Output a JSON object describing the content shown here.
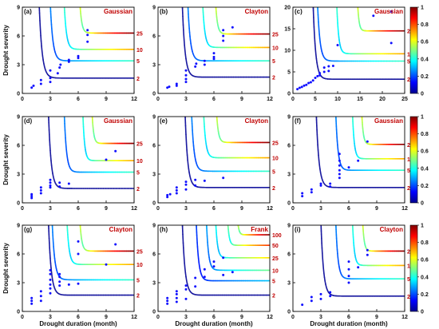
{
  "figure": {
    "xlabel": "Drought duration (month)",
    "ylabel": "Drought severity"
  },
  "colorbar": {
    "ticks": [
      "0",
      "0.2",
      "0.4",
      "0.6",
      "0.8",
      "1"
    ]
  },
  "chart_data": [
    {
      "panel": "(a)",
      "copula": "Gaussian",
      "type": "scatter",
      "xlim": [
        0,
        12
      ],
      "ylim": [
        0,
        9
      ],
      "xticks": [
        "0",
        "3",
        "6",
        "9",
        "12"
      ],
      "yticks": [
        "0",
        "3",
        "6",
        "9"
      ],
      "return_periods": [
        "2",
        "5",
        "10",
        "25"
      ],
      "contours": [
        {
          "label": "2",
          "xa": 1.8,
          "ya": 1.6
        },
        {
          "label": "5",
          "xa": 3.0,
          "ya": 3.4
        },
        {
          "label": "10",
          "xa": 4.5,
          "ya": 4.6
        },
        {
          "label": "25",
          "xa": 6.2,
          "ya": 6.3
        }
      ],
      "points": [
        [
          1,
          0.6
        ],
        [
          1.2,
          0.8
        ],
        [
          2,
          1
        ],
        [
          2,
          1.4
        ],
        [
          3,
          1.2
        ],
        [
          3,
          1.6
        ],
        [
          3,
          2.4
        ],
        [
          3.8,
          2.1
        ],
        [
          4,
          2.7
        ],
        [
          4.1,
          3
        ],
        [
          5,
          3.3
        ],
        [
          5,
          3.5
        ],
        [
          6,
          3.7
        ],
        [
          6,
          3.9
        ],
        [
          7,
          5.4
        ],
        [
          7,
          6.1
        ],
        [
          7,
          6.6
        ]
      ]
    },
    {
      "panel": "(b)",
      "copula": "Clayton",
      "type": "scatter",
      "xlim": [
        0,
        12
      ],
      "ylim": [
        0,
        9
      ],
      "xticks": [
        "0",
        "3",
        "6",
        "9",
        "12"
      ],
      "yticks": [
        "0",
        "3",
        "6",
        "9"
      ],
      "return_periods": [
        "2",
        "5",
        "10",
        "25"
      ],
      "contours": [
        {
          "label": "2",
          "xa": 2.6,
          "ya": 1.7
        },
        {
          "label": "5",
          "xa": 3.2,
          "ya": 3.4
        },
        {
          "label": "10",
          "xa": 4.8,
          "ya": 4.8
        },
        {
          "label": "25",
          "xa": 6.2,
          "ya": 6.2
        }
      ],
      "points": [
        [
          1,
          0.6
        ],
        [
          1.2,
          0.7
        ],
        [
          2,
          0.8
        ],
        [
          2,
          1
        ],
        [
          3,
          1.2
        ],
        [
          3,
          1.5
        ],
        [
          3,
          1.9
        ],
        [
          3,
          2.4
        ],
        [
          4,
          2.8
        ],
        [
          4.1,
          3.1
        ],
        [
          5,
          3
        ],
        [
          5,
          3.4
        ],
        [
          6,
          3.6
        ],
        [
          6,
          3.8
        ],
        [
          6,
          4.2
        ],
        [
          7,
          5.5
        ],
        [
          7,
          6
        ],
        [
          7,
          6.6
        ],
        [
          8,
          6.9
        ]
      ]
    },
    {
      "panel": "(c)",
      "copula": "Gaussian",
      "type": "scatter",
      "xlim": [
        0,
        25
      ],
      "ylim": [
        0,
        20
      ],
      "xticks": [
        "0",
        "5",
        "10",
        "15",
        "20",
        "25"
      ],
      "yticks": [
        "0",
        "5",
        "10",
        "15",
        "20"
      ],
      "return_periods": [
        "2",
        "5",
        "10",
        "25"
      ],
      "contours": [
        {
          "label": "2",
          "xa": 4.5,
          "ya": 3.3
        },
        {
          "label": "5",
          "xa": 5.5,
          "ya": 7.5
        },
        {
          "label": "10",
          "xa": 9.8,
          "ya": 9.2
        },
        {
          "label": "25",
          "xa": 14.5,
          "ya": 14.5
        }
      ],
      "points": [
        [
          1,
          1
        ],
        [
          1.5,
          1.3
        ],
        [
          2,
          1.5
        ],
        [
          2.5,
          1.8
        ],
        [
          3,
          2
        ],
        [
          3.5,
          2.4
        ],
        [
          4,
          2.6
        ],
        [
          4.5,
          3
        ],
        [
          5,
          3.6
        ],
        [
          5.5,
          4
        ],
        [
          6,
          4.2
        ],
        [
          6,
          4.7
        ],
        [
          7,
          5
        ],
        [
          7,
          6
        ],
        [
          8,
          5.2
        ],
        [
          8,
          6.3
        ],
        [
          9,
          6.4
        ],
        [
          10,
          11.2
        ],
        [
          18,
          18
        ],
        [
          22,
          19
        ],
        [
          22,
          11.7
        ]
      ]
    },
    {
      "panel": "(d)",
      "copula": "Gaussian",
      "type": "scatter",
      "xlim": [
        0,
        12
      ],
      "ylim": [
        0,
        9
      ],
      "xticks": [
        "0",
        "3",
        "6",
        "9",
        "12"
      ],
      "yticks": [
        "0",
        "3",
        "6",
        "9"
      ],
      "return_periods": [
        "2",
        "5",
        "10",
        "25"
      ],
      "contours": [
        {
          "label": "2",
          "xa": 2.8,
          "ya": 1.5
        },
        {
          "label": "5",
          "xa": 4.5,
          "ya": 3.2
        },
        {
          "label": "10",
          "xa": 6.5,
          "ya": 4.4
        },
        {
          "label": "25",
          "xa": 7.5,
          "ya": 6.2
        }
      ],
      "points": [
        [
          1,
          0.5
        ],
        [
          1,
          0.7
        ],
        [
          1,
          0.9
        ],
        [
          2,
          1
        ],
        [
          2,
          1.3
        ],
        [
          2,
          1.6
        ],
        [
          3,
          1.6
        ],
        [
          3,
          1.8
        ],
        [
          3,
          2.1
        ],
        [
          3,
          2.4
        ],
        [
          4,
          1.7
        ],
        [
          4,
          2.1
        ],
        [
          5,
          2
        ],
        [
          9,
          4.5
        ],
        [
          10,
          5.4
        ]
      ]
    },
    {
      "panel": "(e)",
      "copula": "Clayton",
      "type": "scatter",
      "xlim": [
        0,
        12
      ],
      "ylim": [
        0,
        9
      ],
      "xticks": [
        "0",
        "3",
        "6",
        "9",
        "12"
      ],
      "yticks": [
        "0",
        "3",
        "6",
        "9"
      ],
      "return_periods": [
        "2",
        "5",
        "10",
        "25"
      ],
      "contours": [
        {
          "label": "2",
          "xa": 2.9,
          "ya": 1.6
        },
        {
          "label": "5",
          "xa": 3.6,
          "ya": 3.3
        },
        {
          "label": "10",
          "xa": 4.9,
          "ya": 4.7
        },
        {
          "label": "25",
          "xa": 6.3,
          "ya": 6.3
        }
      ],
      "points": [
        [
          1,
          0.6
        ],
        [
          1,
          0.8
        ],
        [
          1.3,
          0.9
        ],
        [
          2,
          1
        ],
        [
          2,
          1.3
        ],
        [
          2,
          1.6
        ],
        [
          3,
          1.4
        ],
        [
          3,
          1.9
        ],
        [
          3,
          2.2
        ],
        [
          4,
          1.8
        ],
        [
          4,
          2.4
        ],
        [
          5,
          2.3
        ],
        [
          7,
          2.6
        ]
      ]
    },
    {
      "panel": "(f)",
      "copula": "Gaussian",
      "type": "scatter",
      "xlim": [
        0,
        12
      ],
      "ylim": [
        0,
        9
      ],
      "xticks": [
        "0",
        "3",
        "6",
        "9",
        "12"
      ],
      "yticks": [
        "0",
        "3",
        "6",
        "9"
      ],
      "return_periods": [
        "2",
        "5",
        "10",
        "25"
      ],
      "contours": [
        {
          "label": "2",
          "xa": 2.5,
          "ya": 1.6
        },
        {
          "label": "5",
          "xa": 4.6,
          "ya": 3.4
        },
        {
          "label": "10",
          "xa": 6.4,
          "ya": 4.6
        },
        {
          "label": "25",
          "xa": 7.4,
          "ya": 6.1
        }
      ],
      "points": [
        [
          1,
          0.7
        ],
        [
          1,
          1
        ],
        [
          2,
          1.1
        ],
        [
          2,
          1.4
        ],
        [
          3,
          1.8
        ],
        [
          3,
          2
        ],
        [
          4,
          1.7
        ],
        [
          4,
          2
        ],
        [
          5,
          2.6
        ],
        [
          5,
          3
        ],
        [
          5,
          3.4
        ],
        [
          5,
          3.9
        ],
        [
          5,
          4.4
        ],
        [
          5,
          5.1
        ],
        [
          6,
          3.7
        ],
        [
          7,
          4.4
        ],
        [
          8,
          6.4
        ]
      ]
    },
    {
      "panel": "(g)",
      "copula": "Clayton",
      "type": "scatter",
      "xlim": [
        0,
        12
      ],
      "ylim": [
        0,
        9
      ],
      "xticks": [
        "0",
        "3",
        "6",
        "9",
        "12"
      ],
      "yticks": [
        "0",
        "3",
        "6",
        "9"
      ],
      "return_periods": [
        "2",
        "5",
        "10",
        "25"
      ],
      "contours": [
        {
          "label": "2",
          "xa": 2.8,
          "ya": 1.7
        },
        {
          "label": "5",
          "xa": 3.2,
          "ya": 3.3
        },
        {
          "label": "10",
          "xa": 4.8,
          "ya": 4.9
        },
        {
          "label": "25",
          "xa": 6.2,
          "ya": 6.3
        }
      ],
      "points": [
        [
          1,
          0.8
        ],
        [
          1,
          1.1
        ],
        [
          1,
          1.4
        ],
        [
          2,
          1.1
        ],
        [
          2,
          1.6
        ],
        [
          2,
          2.1
        ],
        [
          3,
          1.9
        ],
        [
          3,
          2.4
        ],
        [
          3,
          2.8
        ],
        [
          3,
          3.3
        ],
        [
          3,
          3.9
        ],
        [
          3,
          4.3
        ],
        [
          4,
          2.7
        ],
        [
          4,
          3.1
        ],
        [
          4,
          3.6
        ],
        [
          4,
          3.9
        ],
        [
          5,
          2.8
        ],
        [
          6,
          2.9
        ],
        [
          6,
          6
        ],
        [
          6,
          7.3
        ],
        [
          9,
          4.9
        ],
        [
          10,
          7
        ]
      ]
    },
    {
      "panel": "(h)",
      "copula": "Frank",
      "type": "scatter",
      "xlim": [
        0,
        12
      ],
      "ylim": [
        0,
        9
      ],
      "xticks": [
        "0",
        "3",
        "6",
        "9",
        "12"
      ],
      "yticks": [
        "0",
        "3",
        "6",
        "9"
      ],
      "return_periods": [
        "2",
        "5",
        "10",
        "25",
        "50",
        "100"
      ],
      "contours": [
        {
          "label": "2",
          "xa": 2.6,
          "ya": 1.7
        },
        {
          "label": "5",
          "xa": 4.1,
          "ya": 3.2
        },
        {
          "label": "10",
          "xa": 5.2,
          "ya": 4.3
        },
        {
          "label": "25",
          "xa": 6.2,
          "ya": 5.6
        },
        {
          "label": "50",
          "xa": 7.5,
          "ya": 6.9
        },
        {
          "label": "100",
          "xa": 8.6,
          "ya": 8.0
        }
      ],
      "points": [
        [
          1,
          0.8
        ],
        [
          1,
          1.1
        ],
        [
          1,
          1.4
        ],
        [
          2,
          1
        ],
        [
          2,
          1.4
        ],
        [
          2,
          1.8
        ],
        [
          2,
          2.1
        ],
        [
          3,
          1.3
        ],
        [
          3,
          2.3
        ],
        [
          3,
          2.7
        ],
        [
          4,
          2.6
        ],
        [
          4,
          3.5
        ],
        [
          5,
          3.6
        ],
        [
          5,
          4.4
        ],
        [
          6,
          4.7
        ],
        [
          6,
          5.2
        ],
        [
          7,
          3.8
        ],
        [
          7,
          5.6
        ],
        [
          8,
          4.1
        ]
      ]
    },
    {
      "panel": "(i)",
      "copula": "Clayton",
      "type": "scatter",
      "xlim": [
        0,
        12
      ],
      "ylim": [
        0,
        9
      ],
      "xticks": [
        "0",
        "3",
        "6",
        "9",
        "12"
      ],
      "yticks": [
        "0",
        "3",
        "6",
        "9"
      ],
      "return_periods": [
        "2",
        "5",
        "10",
        "25"
      ],
      "contours": [
        {
          "label": "2",
          "xa": 3.0,
          "ya": 1.6
        },
        {
          "label": "5",
          "xa": 4.6,
          "ya": 3.4
        },
        {
          "label": "10",
          "xa": 6.4,
          "ya": 4.8
        },
        {
          "label": "25",
          "xa": 7.5,
          "ya": 6.3
        }
      ],
      "points": [
        [
          1,
          0.7
        ],
        [
          2,
          1.1
        ],
        [
          2,
          1.5
        ],
        [
          3,
          1.3
        ],
        [
          3,
          1.8
        ],
        [
          4,
          1.6
        ],
        [
          4,
          2
        ],
        [
          6,
          3
        ],
        [
          6,
          3.7
        ],
        [
          6,
          4.4
        ],
        [
          6,
          5.2
        ],
        [
          7,
          4.6
        ],
        [
          8,
          5.9
        ],
        [
          8,
          6.4
        ]
      ]
    }
  ]
}
